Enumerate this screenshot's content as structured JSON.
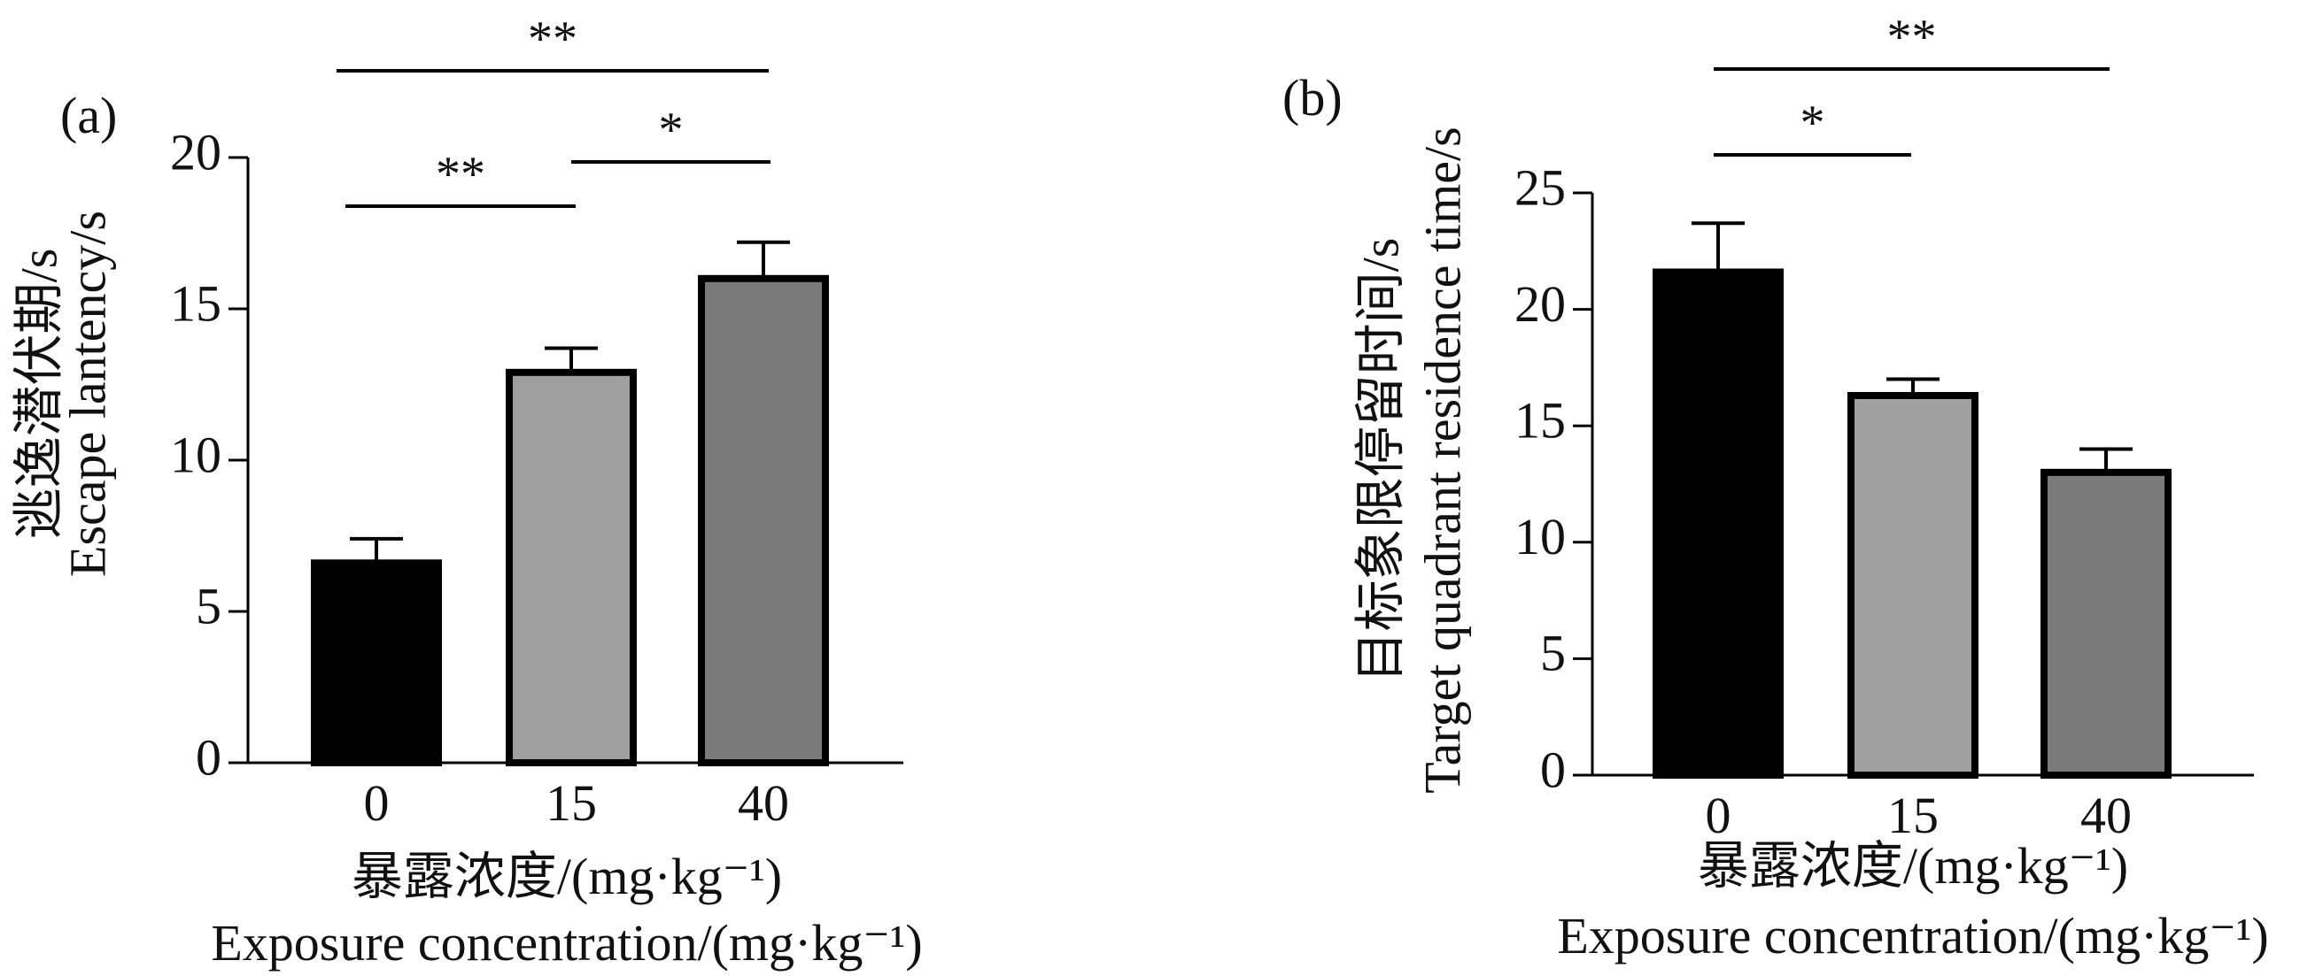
{
  "chart_data": [
    {
      "type": "bar",
      "panel_label": "(a)",
      "categories": [
        "0",
        "15",
        "40"
      ],
      "values": [
        6.6,
        12.9,
        16.0
      ],
      "errors": [
        0.8,
        0.8,
        1.2
      ],
      "colors": [
        "#000000",
        "#a0a0a0",
        "#7a7a7a"
      ],
      "ylabel_zh": "逃逸潜伏期/s",
      "ylabel": "Escape lantency/s",
      "xlabel_zh": "暴露浓度/(mg·kg⁻¹)",
      "xlabel": "Exposure concentration/(mg·kg⁻¹)",
      "ylim": [
        0,
        20
      ],
      "yticks": [
        "0",
        "5",
        "10",
        "15",
        "20"
      ],
      "grid": false,
      "significance": [
        {
          "from": "0",
          "to": "15",
          "label": "**"
        },
        {
          "from": "15",
          "to": "40",
          "label": "*"
        },
        {
          "from": "0",
          "to": "40",
          "label": "**"
        }
      ]
    },
    {
      "type": "bar",
      "panel_label": "(b)",
      "categories": [
        "0",
        "15",
        "40"
      ],
      "values": [
        21.6,
        16.3,
        13.0
      ],
      "errors": [
        2.1,
        0.7,
        1.0
      ],
      "colors": [
        "#000000",
        "#a0a0a0",
        "#7a7a7a"
      ],
      "ylabel_zh": "目标象限停留时间/s",
      "ylabel": "Target quadrant residence time/s",
      "xlabel_zh": "暴露浓度/(mg·kg⁻¹)",
      "xlabel": "Exposure concentration/(mg·kg⁻¹)",
      "ylim": [
        0,
        25
      ],
      "yticks": [
        "0",
        "5",
        "10",
        "15",
        "20",
        "25"
      ],
      "grid": false,
      "significance": [
        {
          "from": "0",
          "to": "15",
          "label": "*"
        },
        {
          "from": "0",
          "to": "40",
          "label": "**"
        }
      ]
    }
  ]
}
